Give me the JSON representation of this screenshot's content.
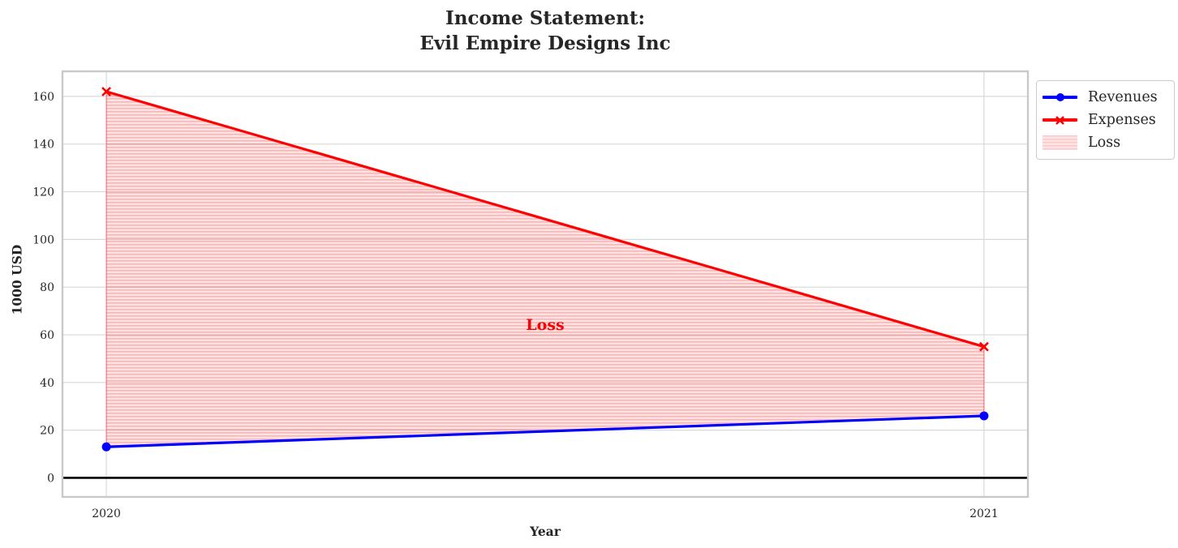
{
  "title": {
    "line1": "Income Statement:",
    "line2": "Evil Empire Designs Inc"
  },
  "axes": {
    "xlabel": "Year",
    "ylabel": "1000 USD",
    "x_tick_labels": [
      "2020",
      "2021"
    ],
    "y_tick_labels": [
      "0",
      "20",
      "40",
      "60",
      "80",
      "100",
      "120",
      "140",
      "160"
    ]
  },
  "annotation": {
    "text": "Loss",
    "color": "#ff0000"
  },
  "legend": {
    "items": [
      {
        "label": "Revenues",
        "marker": "circle",
        "color": "#0000ff"
      },
      {
        "label": "Expenses",
        "marker": "x",
        "color": "#ff0000"
      },
      {
        "label": "Loss",
        "marker": "hatch-swatch",
        "color": "#ff0000"
      }
    ]
  },
  "chart_data": {
    "type": "line",
    "title": "Income Statement:\nEvil Empire Designs Inc",
    "xlabel": "Year",
    "ylabel": "1000 USD",
    "x": [
      2020,
      2021
    ],
    "series": [
      {
        "name": "Revenues",
        "values": [
          13,
          26
        ],
        "color": "#0000ff",
        "marker": "circle"
      },
      {
        "name": "Expenses",
        "values": [
          162,
          55
        ],
        "color": "#ff0000",
        "marker": "x"
      }
    ],
    "area": {
      "name": "Loss",
      "between": [
        "Expenses",
        "Revenues"
      ],
      "x": [
        2020,
        2021
      ],
      "upper": [
        162,
        55
      ],
      "lower": [
        13,
        26
      ],
      "fill_color": "rgba(255,0,0,0.10)",
      "hatch_line_color": "rgba(255,0,0,0.22)",
      "edge_color": "rgba(255,0,0,0.45)",
      "hatch": "horizontal"
    },
    "annotation": {
      "text": "Loss",
      "x": 2020.5,
      "y": 64,
      "color": "#ff0000"
    },
    "xlim": [
      2019.95,
      2021.05
    ],
    "ylim": [
      -8,
      170.5
    ],
    "x_ticks": [
      2020,
      2021
    ],
    "y_ticks": [
      0,
      20,
      40,
      60,
      80,
      100,
      120,
      140,
      160
    ],
    "zero_line_y": 0,
    "grid": true,
    "legend_position": "outside-upper-right"
  },
  "colors": {
    "grid": "#d9d9d9",
    "spine": "#c9c9c9",
    "zero_line": "#000000",
    "text": "#262626",
    "background": "#ffffff"
  }
}
